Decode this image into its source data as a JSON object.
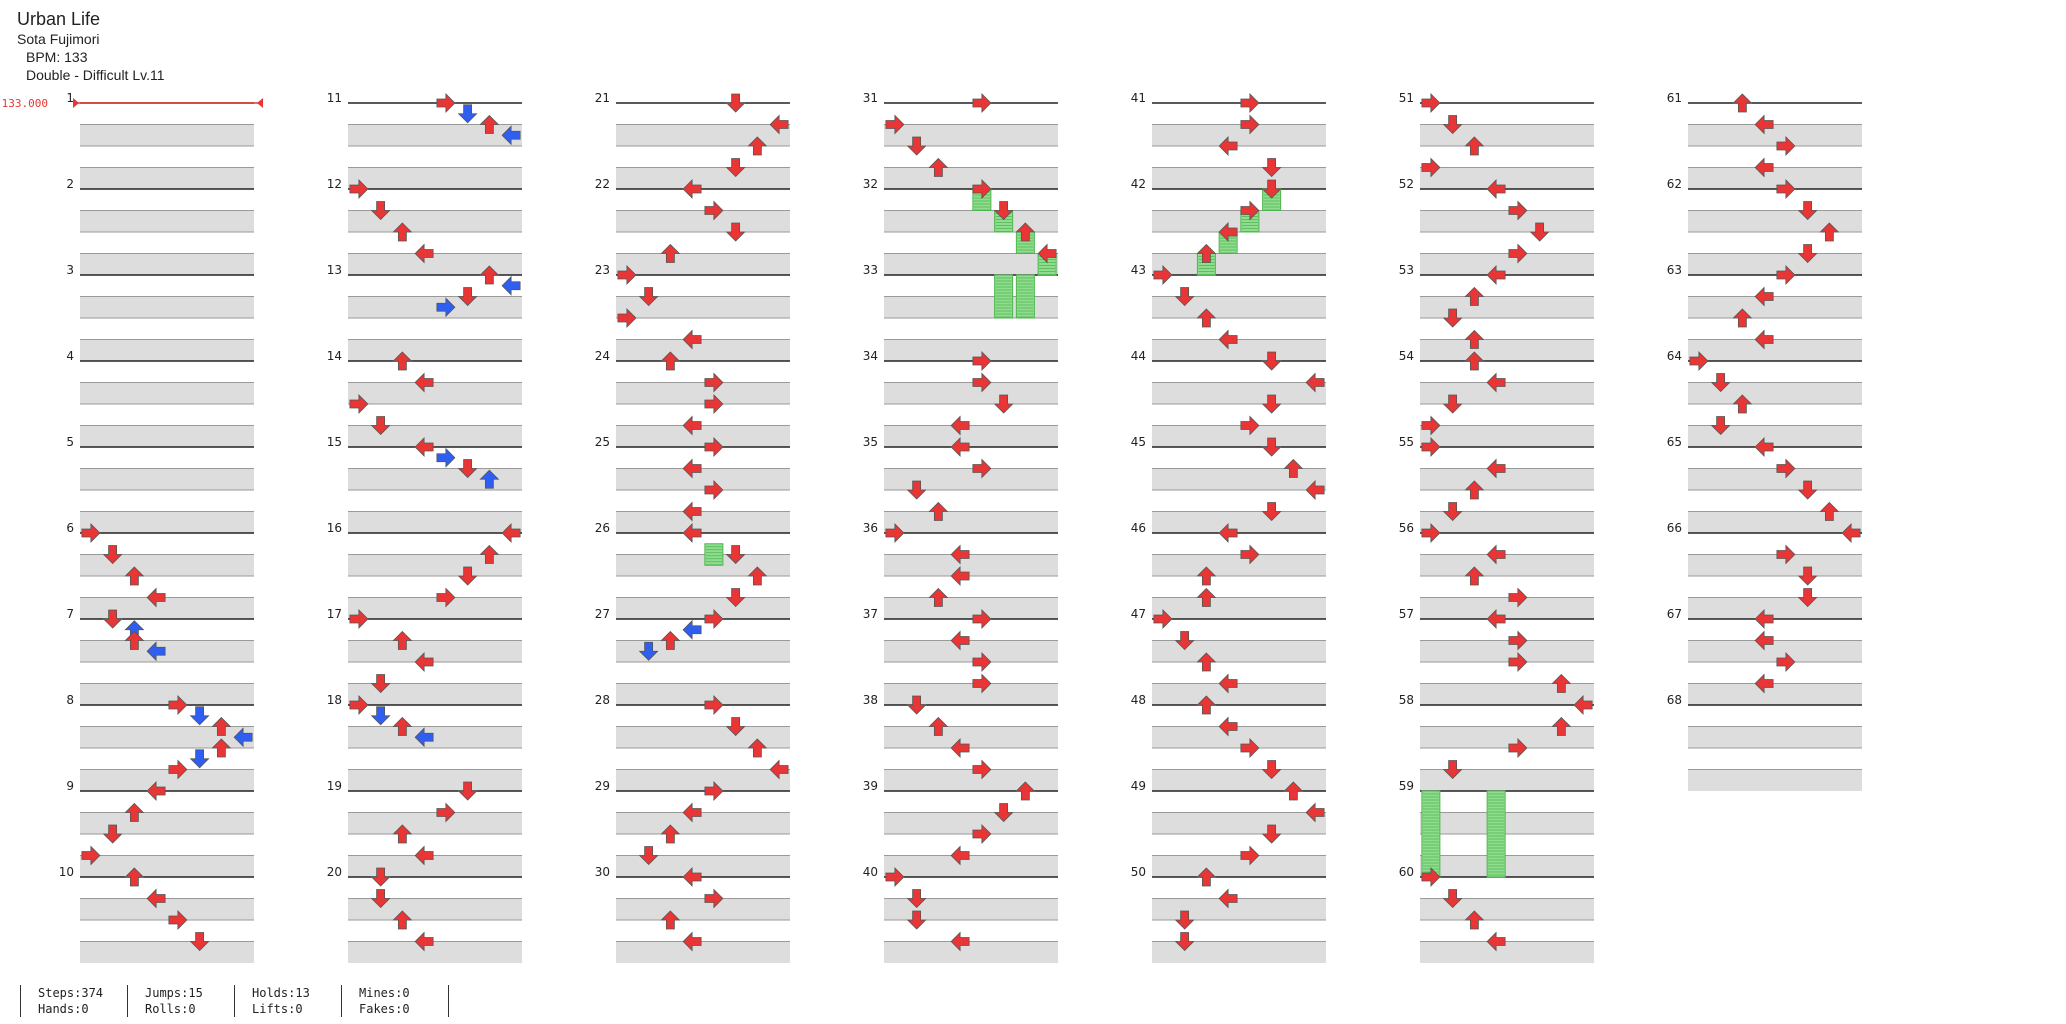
{
  "song": {
    "title": "Urban Life",
    "artist": "Sota Fujimori",
    "bpm_label": "BPM: 133",
    "chart_label": "Double - Difficult Lv.11"
  },
  "bpm_marker": {
    "value": "133.000",
    "color": "#e83535"
  },
  "stats": {
    "col1": [
      "Steps:374",
      "Hands:0"
    ],
    "col2": [
      "Jumps:15",
      "Rolls:0"
    ],
    "col3": [
      "Holds:13",
      "Lifts:0"
    ],
    "col4": [
      "Mines:0",
      "Fakes:0"
    ],
    "col5": [
      "",
      ""
    ]
  },
  "colors": {
    "quarter": "#e83535",
    "eighth": "#2f5ff0",
    "sixteenth": "#f5dc2f",
    "twelfth": "#b43cf0",
    "hold": "#8fde8f",
    "hold_stripe": "#4fb54f",
    "lane_fill": "#dddddd",
    "measure_line": "#222222"
  },
  "icons": {
    "note": "arrow-note-icon",
    "hold": "freeze-arrow-icon",
    "bpm": "bpm-flag-icon"
  },
  "measures": [
    "1",
    "2",
    "3",
    "4",
    "5",
    "6",
    "7",
    "8",
    "9",
    "10",
    "11",
    "12",
    "13",
    "14",
    "15",
    "16",
    "17",
    "18",
    "19",
    "20",
    "21",
    "22",
    "23",
    "24",
    "25",
    "26",
    "27",
    "28",
    "29",
    "30",
    "31",
    "32",
    "33",
    "34",
    "35",
    "36",
    "37",
    "38",
    "39",
    "40",
    "41",
    "42",
    "43",
    "44",
    "45",
    "46",
    "47",
    "48",
    "49",
    "50",
    "51",
    "52",
    "53",
    "54",
    "55",
    "56",
    "57",
    "58",
    "59",
    "60",
    "61",
    "62",
    "63",
    "64",
    "65",
    "66",
    "67",
    "68"
  ],
  "chart_data": {
    "type": "step-chart",
    "lanes": [
      "P1-Left",
      "P1-Down",
      "P1-Up",
      "P1-Right",
      "P2-Left",
      "P2-Down",
      "P2-Up",
      "P2-Right"
    ],
    "measures_count": 68,
    "bpm": 133,
    "notes": [
      {
        "m": 6,
        "b": 0,
        "l": 0
      },
      {
        "m": 6,
        "b": 1,
        "l": 1
      },
      {
        "m": 6,
        "b": 2,
        "l": 2
      },
      {
        "m": 6,
        "b": 3,
        "l": 3
      },
      {
        "m": 7,
        "b": 0,
        "l": 1
      },
      {
        "m": 7,
        "b": 0.5,
        "l": 2
      },
      {
        "m": 7,
        "b": 1,
        "l": 2
      },
      {
        "m": 7,
        "b": 1.5,
        "l": 3
      },
      {
        "m": 8,
        "b": 0,
        "l": 4
      },
      {
        "m": 8,
        "b": 0.5,
        "l": 5
      },
      {
        "m": 8,
        "b": 1,
        "l": 6
      },
      {
        "m": 8,
        "b": 1.5,
        "l": 7
      },
      {
        "m": 8,
        "b": 2,
        "l": 6
      },
      {
        "m": 8,
        "b": 2.5,
        "l": 5
      },
      {
        "m": 8,
        "b": 3,
        "l": 4
      },
      {
        "m": 9,
        "b": 0,
        "l": 3
      },
      {
        "m": 9,
        "b": 1,
        "l": 2
      },
      {
        "m": 9,
        "b": 2,
        "l": 1
      },
      {
        "m": 9,
        "b": 3,
        "l": 0
      },
      {
        "m": 10,
        "b": 0,
        "l": 2
      },
      {
        "m": 10,
        "b": 1,
        "l": 3
      },
      {
        "m": 10,
        "b": 2,
        "l": 4
      },
      {
        "m": 10,
        "b": 3,
        "l": 5
      },
      {
        "m": 11,
        "b": 0,
        "l": 4
      },
      {
        "m": 11,
        "b": 0.5,
        "l": 5
      },
      {
        "m": 11,
        "b": 1,
        "l": 6
      },
      {
        "m": 11,
        "b": 1.5,
        "l": 7
      },
      {
        "m": 12,
        "b": 0,
        "l": 0
      },
      {
        "m": 12,
        "b": 1,
        "l": 1
      },
      {
        "m": 12,
        "b": 2,
        "l": 2
      },
      {
        "m": 12,
        "b": 3,
        "l": 3
      },
      {
        "m": 13,
        "b": 0,
        "l": 6
      },
      {
        "m": 13,
        "b": 0.5,
        "l": 7
      },
      {
        "m": 13,
        "b": 1,
        "l": 5
      },
      {
        "m": 13,
        "b": 1.5,
        "l": 4
      },
      {
        "m": 14,
        "b": 0,
        "l": 2
      },
      {
        "m": 14,
        "b": 1,
        "l": 3
      },
      {
        "m": 14,
        "b": 2,
        "l": 0
      },
      {
        "m": 14,
        "b": 3,
        "l": 1
      },
      {
        "m": 15,
        "b": 0,
        "l": 3
      },
      {
        "m": 15,
        "b": 0.5,
        "l": 4
      },
      {
        "m": 15,
        "b": 1,
        "l": 5
      },
      {
        "m": 15,
        "b": 1.5,
        "l": 6
      },
      {
        "m": 16,
        "b": 0,
        "l": 7
      },
      {
        "m": 16,
        "b": 1,
        "l": 6
      },
      {
        "m": 16,
        "b": 2,
        "l": 5
      },
      {
        "m": 16,
        "b": 3,
        "l": 4
      },
      {
        "m": 17,
        "b": 0,
        "l": 0
      },
      {
        "m": 17,
        "b": 1,
        "l": 2
      },
      {
        "m": 17,
        "b": 2,
        "l": 3
      },
      {
        "m": 17,
        "b": 3,
        "l": 1
      },
      {
        "m": 18,
        "b": 0,
        "l": 0
      },
      {
        "m": 18,
        "b": 0.5,
        "l": 1
      },
      {
        "m": 18,
        "b": 1,
        "l": 2
      },
      {
        "m": 18,
        "b": 1.5,
        "l": 3
      },
      {
        "m": 19,
        "b": 0,
        "l": 5
      },
      {
        "m": 19,
        "b": 1,
        "l": 4
      },
      {
        "m": 19,
        "b": 2,
        "l": 2
      },
      {
        "m": 19,
        "b": 3,
        "l": 3
      },
      {
        "m": 20,
        "b": 0,
        "l": 1
      },
      {
        "m": 20,
        "b": 1,
        "l": 1
      },
      {
        "m": 20,
        "b": 2,
        "l": 2
      },
      {
        "m": 20,
        "b": 3,
        "l": 3
      },
      {
        "m": 21,
        "b": 0,
        "l": 5
      },
      {
        "m": 21,
        "b": 1,
        "l": 7
      },
      {
        "m": 21,
        "b": 2,
        "l": 6
      },
      {
        "m": 21,
        "b": 3,
        "l": 5
      },
      {
        "m": 22,
        "b": 0,
        "l": 3
      },
      {
        "m": 22,
        "b": 1,
        "l": 4
      },
      {
        "m": 22,
        "b": 2,
        "l": 5
      },
      {
        "m": 22,
        "b": 3,
        "l": 2
      },
      {
        "m": 23,
        "b": 0,
        "l": 0
      },
      {
        "m": 23,
        "b": 1,
        "l": 1
      },
      {
        "m": 23,
        "b": 2,
        "l": 0
      },
      {
        "m": 23,
        "b": 3,
        "l": 3
      },
      {
        "m": 24,
        "b": 0,
        "l": 2
      },
      {
        "m": 24,
        "b": 1,
        "l": 4
      },
      {
        "m": 24,
        "b": 2,
        "l": 4
      },
      {
        "m": 24,
        "b": 3,
        "l": 3
      },
      {
        "m": 25,
        "b": 0,
        "l": 4
      },
      {
        "m": 25,
        "b": 1,
        "l": 3
      },
      {
        "m": 25,
        "b": 2,
        "l": 4
      },
      {
        "m": 25,
        "b": 3,
        "l": 3
      },
      {
        "m": 26,
        "b": 0,
        "l": 3
      },
      {
        "m": 26,
        "b": 1,
        "l": 5
      },
      {
        "m": 26,
        "b": 2,
        "l": 6
      },
      {
        "m": 26,
        "b": 3,
        "l": 5
      },
      {
        "m": 27,
        "b": 0,
        "l": 4
      },
      {
        "m": 27,
        "b": 0.5,
        "l": 3
      },
      {
        "m": 27,
        "b": 1,
        "l": 2
      },
      {
        "m": 27,
        "b": 1.5,
        "l": 1
      },
      {
        "m": 28,
        "b": 0,
        "l": 4
      },
      {
        "m": 28,
        "b": 1,
        "l": 5
      },
      {
        "m": 28,
        "b": 2,
        "l": 6
      },
      {
        "m": 28,
        "b": 3,
        "l": 7
      },
      {
        "m": 29,
        "b": 0,
        "l": 4
      },
      {
        "m": 29,
        "b": 1,
        "l": 3
      },
      {
        "m": 29,
        "b": 2,
        "l": 2
      },
      {
        "m": 29,
        "b": 3,
        "l": 1
      },
      {
        "m": 30,
        "b": 0,
        "l": 3
      },
      {
        "m": 30,
        "b": 1,
        "l": 4
      },
      {
        "m": 30,
        "b": 2,
        "l": 2
      },
      {
        "m": 30,
        "b": 3,
        "l": 3
      },
      {
        "m": 31,
        "b": 0,
        "l": 4
      },
      {
        "m": 31,
        "b": 1,
        "l": 0
      },
      {
        "m": 31,
        "b": 2,
        "l": 1
      },
      {
        "m": 31,
        "b": 3,
        "l": 2
      },
      {
        "m": 32,
        "b": 0,
        "l": 4
      },
      {
        "m": 32,
        "b": 1,
        "l": 5
      },
      {
        "m": 32,
        "b": 2,
        "l": 6
      },
      {
        "m": 32,
        "b": 3,
        "l": 7
      },
      {
        "m": 34,
        "b": 0,
        "l": 4
      },
      {
        "m": 34,
        "b": 1,
        "l": 4
      },
      {
        "m": 34,
        "b": 2,
        "l": 5
      },
      {
        "m": 34,
        "b": 3,
        "l": 3
      },
      {
        "m": 35,
        "b": 0,
        "l": 3
      },
      {
        "m": 35,
        "b": 1,
        "l": 4
      },
      {
        "m": 35,
        "b": 2,
        "l": 1
      },
      {
        "m": 35,
        "b": 3,
        "l": 2
      },
      {
        "m": 36,
        "b": 0,
        "l": 0
      },
      {
        "m": 36,
        "b": 1,
        "l": 3
      },
      {
        "m": 36,
        "b": 2,
        "l": 3
      },
      {
        "m": 36,
        "b": 3,
        "l": 2
      },
      {
        "m": 37,
        "b": 0,
        "l": 4
      },
      {
        "m": 37,
        "b": 1,
        "l": 3
      },
      {
        "m": 37,
        "b": 2,
        "l": 4
      },
      {
        "m": 37,
        "b": 3,
        "l": 4
      },
      {
        "m": 38,
        "b": 0,
        "l": 1
      },
      {
        "m": 38,
        "b": 1,
        "l": 2
      },
      {
        "m": 38,
        "b": 2,
        "l": 3
      },
      {
        "m": 38,
        "b": 3,
        "l": 4
      },
      {
        "m": 39,
        "b": 0,
        "l": 6
      },
      {
        "m": 39,
        "b": 1,
        "l": 5
      },
      {
        "m": 39,
        "b": 2,
        "l": 4
      },
      {
        "m": 39,
        "b": 3,
        "l": 3
      },
      {
        "m": 40,
        "b": 0,
        "l": 0
      },
      {
        "m": 40,
        "b": 1,
        "l": 1
      },
      {
        "m": 40,
        "b": 2,
        "l": 1
      },
      {
        "m": 40,
        "b": 3,
        "l": 3
      },
      {
        "m": 41,
        "b": 0,
        "l": 4
      },
      {
        "m": 41,
        "b": 1,
        "l": 4
      },
      {
        "m": 41,
        "b": 2,
        "l": 3
      },
      {
        "m": 41,
        "b": 3,
        "l": 5
      },
      {
        "m": 42,
        "b": 0,
        "l": 5
      },
      {
        "m": 42,
        "b": 1,
        "l": 4
      },
      {
        "m": 42,
        "b": 2,
        "l": 3
      },
      {
        "m": 42,
        "b": 3,
        "l": 2
      },
      {
        "m": 43,
        "b": 0,
        "l": 0
      },
      {
        "m": 43,
        "b": 1,
        "l": 1
      },
      {
        "m": 43,
        "b": 2,
        "l": 2
      },
      {
        "m": 43,
        "b": 3,
        "l": 3
      },
      {
        "m": 44,
        "b": 0,
        "l": 5
      },
      {
        "m": 44,
        "b": 1,
        "l": 7
      },
      {
        "m": 44,
        "b": 2,
        "l": 5
      },
      {
        "m": 44,
        "b": 3,
        "l": 4
      },
      {
        "m": 45,
        "b": 0,
        "l": 5
      },
      {
        "m": 45,
        "b": 1,
        "l": 6
      },
      {
        "m": 45,
        "b": 2,
        "l": 7
      },
      {
        "m": 45,
        "b": 3,
        "l": 5
      },
      {
        "m": 46,
        "b": 0,
        "l": 3
      },
      {
        "m": 46,
        "b": 1,
        "l": 4
      },
      {
        "m": 46,
        "b": 2,
        "l": 2
      },
      {
        "m": 46,
        "b": 3,
        "l": 2
      },
      {
        "m": 47,
        "b": 0,
        "l": 0
      },
      {
        "m": 47,
        "b": 1,
        "l": 1
      },
      {
        "m": 47,
        "b": 2,
        "l": 2
      },
      {
        "m": 47,
        "b": 3,
        "l": 3
      },
      {
        "m": 48,
        "b": 0,
        "l": 2
      },
      {
        "m": 48,
        "b": 1,
        "l": 3
      },
      {
        "m": 48,
        "b": 2,
        "l": 4
      },
      {
        "m": 48,
        "b": 3,
        "l": 5
      },
      {
        "m": 49,
        "b": 0,
        "l": 6
      },
      {
        "m": 49,
        "b": 1,
        "l": 7
      },
      {
        "m": 49,
        "b": 2,
        "l": 5
      },
      {
        "m": 49,
        "b": 3,
        "l": 4
      },
      {
        "m": 50,
        "b": 0,
        "l": 2
      },
      {
        "m": 50,
        "b": 1,
        "l": 3
      },
      {
        "m": 50,
        "b": 2,
        "l": 1
      },
      {
        "m": 50,
        "b": 3,
        "l": 1
      },
      {
        "m": 51,
        "b": 0,
        "l": 0
      },
      {
        "m": 51,
        "b": 1,
        "l": 1
      },
      {
        "m": 51,
        "b": 2,
        "l": 2
      },
      {
        "m": 51,
        "b": 3,
        "l": 0
      },
      {
        "m": 52,
        "b": 0,
        "l": 3
      },
      {
        "m": 52,
        "b": 1,
        "l": 4
      },
      {
        "m": 52,
        "b": 2,
        "l": 5
      },
      {
        "m": 52,
        "b": 3,
        "l": 4
      },
      {
        "m": 53,
        "b": 0,
        "l": 3
      },
      {
        "m": 53,
        "b": 1,
        "l": 2
      },
      {
        "m": 53,
        "b": 2,
        "l": 1
      },
      {
        "m": 53,
        "b": 3,
        "l": 2
      },
      {
        "m": 54,
        "b": 0,
        "l": 2
      },
      {
        "m": 54,
        "b": 1,
        "l": 3
      },
      {
        "m": 54,
        "b": 2,
        "l": 1
      },
      {
        "m": 54,
        "b": 3,
        "l": 0
      },
      {
        "m": 55,
        "b": 0,
        "l": 0
      },
      {
        "m": 55,
        "b": 1,
        "l": 3
      },
      {
        "m": 55,
        "b": 2,
        "l": 2
      },
      {
        "m": 55,
        "b": 3,
        "l": 1
      },
      {
        "m": 56,
        "b": 0,
        "l": 0
      },
      {
        "m": 56,
        "b": 1,
        "l": 3
      },
      {
        "m": 56,
        "b": 2,
        "l": 2
      },
      {
        "m": 56,
        "b": 3,
        "l": 4
      },
      {
        "m": 57,
        "b": 0,
        "l": 3
      },
      {
        "m": 57,
        "b": 1,
        "l": 4
      },
      {
        "m": 57,
        "b": 2,
        "l": 4
      },
      {
        "m": 57,
        "b": 3,
        "l": 6
      },
      {
        "m": 58,
        "b": 0,
        "l": 7
      },
      {
        "m": 58,
        "b": 1,
        "l": 6
      },
      {
        "m": 58,
        "b": 2,
        "l": 4
      },
      {
        "m": 58,
        "b": 3,
        "l": 1
      },
      {
        "m": 60,
        "b": 0,
        "l": 0
      },
      {
        "m": 60,
        "b": 1,
        "l": 1
      },
      {
        "m": 60,
        "b": 2,
        "l": 2
      },
      {
        "m": 60,
        "b": 3,
        "l": 3
      },
      {
        "m": 61,
        "b": 0,
        "l": 2
      },
      {
        "m": 61,
        "b": 1,
        "l": 3
      },
      {
        "m": 61,
        "b": 2,
        "l": 4
      },
      {
        "m": 61,
        "b": 3,
        "l": 3
      },
      {
        "m": 62,
        "b": 0,
        "l": 4
      },
      {
        "m": 62,
        "b": 1,
        "l": 5
      },
      {
        "m": 62,
        "b": 2,
        "l": 6
      },
      {
        "m": 62,
        "b": 3,
        "l": 5
      },
      {
        "m": 63,
        "b": 0,
        "l": 4
      },
      {
        "m": 63,
        "b": 1,
        "l": 3
      },
      {
        "m": 63,
        "b": 2,
        "l": 2
      },
      {
        "m": 63,
        "b": 3,
        "l": 3
      },
      {
        "m": 64,
        "b": 0,
        "l": 0
      },
      {
        "m": 64,
        "b": 1,
        "l": 1
      },
      {
        "m": 64,
        "b": 2,
        "l": 2
      },
      {
        "m": 64,
        "b": 3,
        "l": 1
      },
      {
        "m": 65,
        "b": 0,
        "l": 3
      },
      {
        "m": 65,
        "b": 1,
        "l": 4
      },
      {
        "m": 65,
        "b": 2,
        "l": 5
      },
      {
        "m": 65,
        "b": 3,
        "l": 6
      },
      {
        "m": 66,
        "b": 0,
        "l": 7
      },
      {
        "m": 66,
        "b": 1,
        "l": 4
      },
      {
        "m": 66,
        "b": 2,
        "l": 5
      },
      {
        "m": 66,
        "b": 3,
        "l": 5
      },
      {
        "m": 67,
        "b": 0,
        "l": 3
      },
      {
        "m": 67,
        "b": 1,
        "l": 3
      },
      {
        "m": 67,
        "b": 2,
        "l": 4
      },
      {
        "m": 67,
        "b": 3,
        "l": 3
      }
    ],
    "holds": [
      {
        "m": 26,
        "b": 0.5,
        "l": 4,
        "len": 1
      },
      {
        "m": 32,
        "b": 0,
        "l": 4,
        "len": 1
      },
      {
        "m": 32,
        "b": 1,
        "l": 5,
        "len": 1
      },
      {
        "m": 32,
        "b": 2,
        "l": 6,
        "len": 1
      },
      {
        "m": 32,
        "b": 3,
        "l": 7,
        "len": 1
      },
      {
        "m": 33,
        "b": 0,
        "l": 5,
        "len": 2
      },
      {
        "m": 33,
        "b": 0,
        "l": 6,
        "len": 2
      },
      {
        "m": 42,
        "b": 0,
        "l": 5,
        "len": 1
      },
      {
        "m": 42,
        "b": 1,
        "l": 4,
        "len": 1
      },
      {
        "m": 42,
        "b": 2,
        "l": 3,
        "len": 1
      },
      {
        "m": 42,
        "b": 3,
        "l": 2,
        "len": 1
      },
      {
        "m": 59,
        "b": 0,
        "l": 0,
        "len": 4
      },
      {
        "m": 59,
        "b": 0,
        "l": 3,
        "len": 4
      }
    ]
  }
}
